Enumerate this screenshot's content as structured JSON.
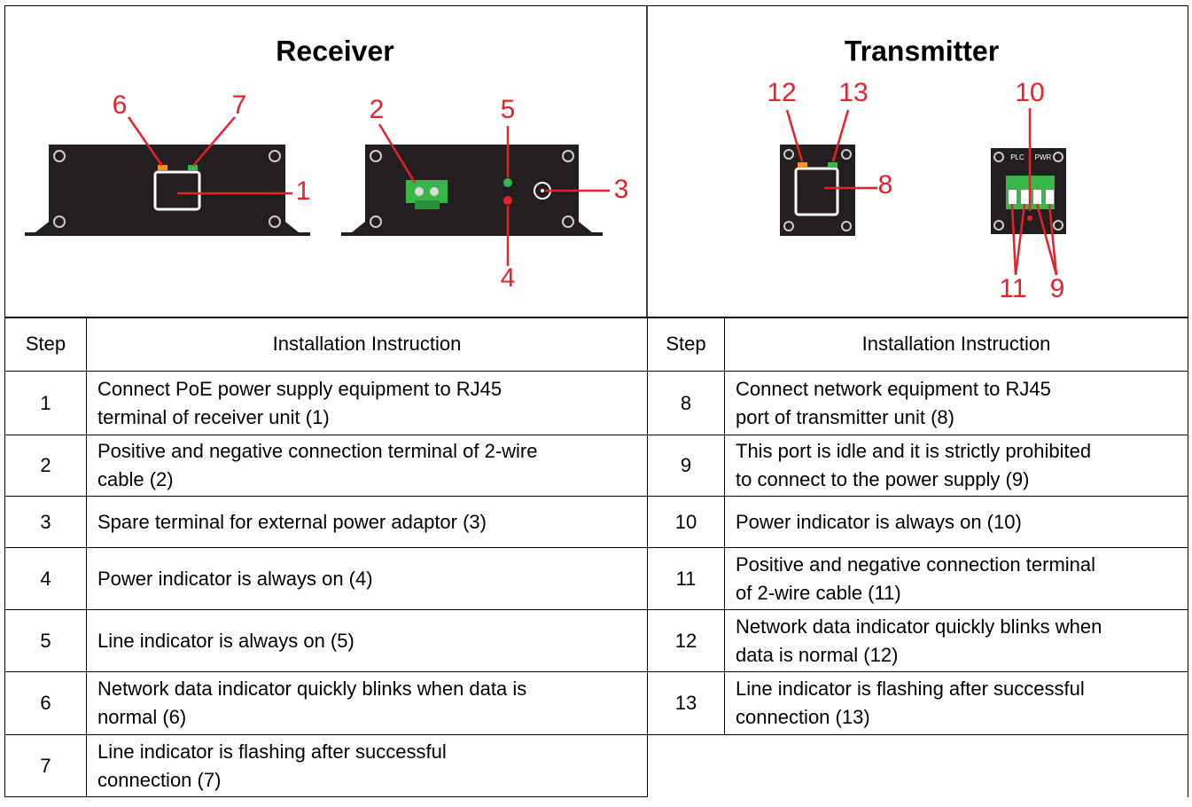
{
  "receiver": {
    "title": "Receiver",
    "callouts": [
      "6",
      "7",
      "1",
      "2",
      "5",
      "3",
      "4"
    ]
  },
  "transmitter": {
    "title": "Transmitter",
    "callouts": [
      "12",
      "13",
      "10",
      "8",
      "11",
      "9"
    ],
    "terminal_labels": [
      "PLC",
      "PWR"
    ]
  },
  "table": {
    "headers": [
      "Step",
      "Installation Instruction",
      "Step",
      "Installation Instruction"
    ],
    "left_rows": [
      [
        "1",
        [
          "Connect PoE power supply equipment to RJ45",
          "terminal of receiver unit (1)"
        ]
      ],
      [
        "2",
        [
          "Positive and negative connection terminal of 2-wire",
          "cable (2)"
        ]
      ],
      [
        "3",
        [
          "Spare terminal for external power adaptor (3)"
        ]
      ],
      [
        "4",
        [
          "Power indicator is always on (4)"
        ]
      ],
      [
        "5",
        [
          "Line indicator is always on (5)"
        ]
      ],
      [
        "6",
        [
          "Network data indicator quickly blinks when data is",
          "normal (6)"
        ]
      ],
      [
        "7",
        [
          "Line indicator is flashing after successful",
          "connection (7)"
        ]
      ]
    ],
    "right_rows": [
      [
        "8",
        [
          "Connect network equipment to RJ45",
          "port of transmitter unit (8)"
        ]
      ],
      [
        "9",
        [
          "This port is idle and it is strictly prohibited",
          "to connect to the power supply (9)"
        ]
      ],
      [
        "10",
        [
          "Power indicator is always on (10)"
        ]
      ],
      [
        "11",
        [
          "Positive and negative connection terminal",
          "of 2-wire cable (11)"
        ]
      ],
      [
        "12",
        [
          "Network data indicator quickly blinks when",
          "data is normal (12)"
        ]
      ],
      [
        "13",
        [
          "Line indicator is flashing after successful",
          "connection (13)"
        ]
      ]
    ]
  }
}
